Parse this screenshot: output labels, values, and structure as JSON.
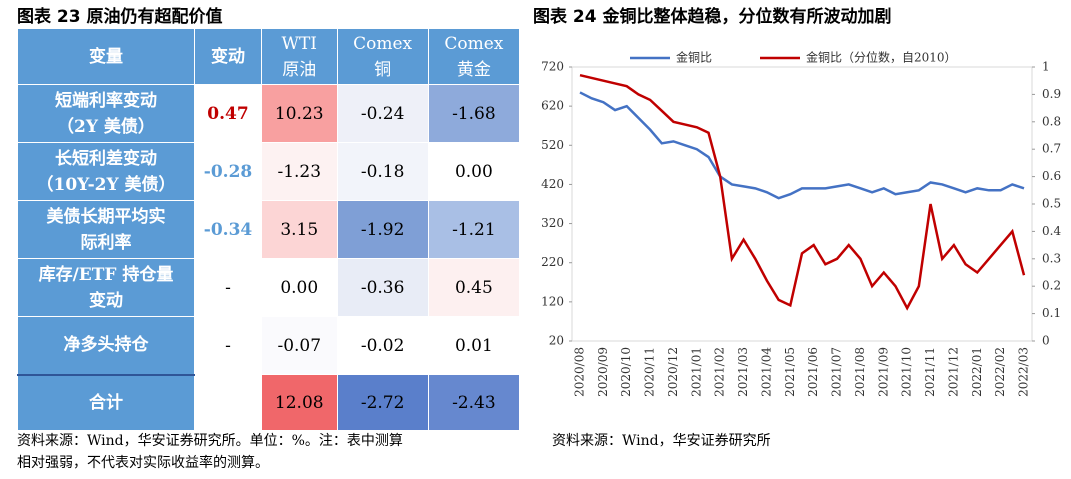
{
  "left": {
    "title": "图表 23 原油仍有超配价值",
    "headers": [
      [
        "变量"
      ],
      [
        "变动"
      ],
      [
        "WTI",
        "原油"
      ],
      [
        "Comex",
        "铜"
      ],
      [
        "Comex",
        "黄金"
      ]
    ],
    "rows": [
      {
        "variable": [
          "短端利率变动",
          "（2Y 美债）"
        ],
        "change": "0.47",
        "cells": [
          "10.23",
          "-0.24",
          "-1.68"
        ]
      },
      {
        "variable": [
          "长短利差变动",
          "（10Y-2Y 美债）"
        ],
        "change": "-0.28",
        "cells": [
          "-1.23",
          "-0.18",
          "0.00"
        ]
      },
      {
        "variable": [
          "美债长期平均实",
          "际利率"
        ],
        "change": "-0.34",
        "cells": [
          "3.15",
          "-1.92",
          "-1.21"
        ]
      },
      {
        "variable": [
          "库存/ETF 持仓量",
          "变动"
        ],
        "change": "-",
        "cells": [
          "0.00",
          "-0.36",
          "0.45"
        ]
      },
      {
        "variable": [
          "净多头持仓"
        ],
        "change": "-",
        "cells": [
          "-0.07",
          "-0.02",
          "0.01"
        ]
      },
      {
        "variable": [
          "合计"
        ],
        "cells": [
          "12.08",
          "-2.72",
          "-2.43"
        ]
      }
    ],
    "source": [
      "资料来源：Wind，华安证券研究所。单位：%。注：表中测算",
      "相对强弱，不代表对实际收益率的测算。"
    ]
  },
  "chart_data": {
    "type": "line",
    "title": "图表 24 金铜比整体趋稳，分位数有所波动加剧",
    "categories": [
      "2020/08",
      null,
      "2020/09",
      null,
      "2020/10",
      null,
      "2020/11",
      null,
      "2020/12",
      null,
      "2021/01",
      null,
      "2021/02",
      null,
      "2021/03",
      null,
      "2021/04",
      null,
      "2021/05",
      null,
      "2021/06",
      null,
      "2021/07",
      null,
      "2021/08",
      null,
      "2021/09",
      null,
      "2021/10",
      null,
      "2021/11",
      null,
      "2021/12",
      null,
      "2022/01",
      null,
      "2022/02",
      null,
      "2022/03"
    ],
    "series": [
      {
        "name": "金铜比",
        "color": "#4472c4",
        "values": [
          655,
          640,
          630,
          610,
          620,
          590,
          560,
          525,
          530,
          520,
          510,
          490,
          440,
          420,
          415,
          410,
          400,
          385,
          395,
          410,
          410,
          410,
          415,
          420,
          410,
          400,
          410,
          395,
          400,
          405,
          425,
          420,
          410,
          400,
          410,
          405,
          405,
          420,
          410
        ]
      },
      {
        "name": "金铜比（分位数，自2010）",
        "color": "#c00000",
        "axis": "y2",
        "values": [
          0.97,
          0.96,
          0.95,
          0.94,
          0.93,
          0.9,
          0.88,
          0.84,
          0.8,
          0.79,
          0.78,
          0.76,
          0.6,
          0.3,
          0.37,
          0.3,
          0.22,
          0.15,
          0.13,
          0.32,
          0.35,
          0.28,
          0.3,
          0.35,
          0.3,
          0.2,
          0.25,
          0.2,
          0.12,
          0.2,
          0.5,
          0.3,
          0.35,
          0.28,
          0.25,
          0.3,
          0.35,
          0.4,
          0.24
        ]
      }
    ],
    "ylim": [
      20,
      720
    ],
    "yticks": [
      20,
      120,
      220,
      320,
      420,
      520,
      620,
      720
    ],
    "y2lim": [
      0,
      1
    ],
    "y2ticks": [
      0,
      0.1,
      0.2,
      0.3,
      0.4,
      0.5,
      0.6,
      0.7,
      0.8,
      0.9,
      1
    ],
    "source": "资料来源：Wind，华安证券研究所"
  }
}
